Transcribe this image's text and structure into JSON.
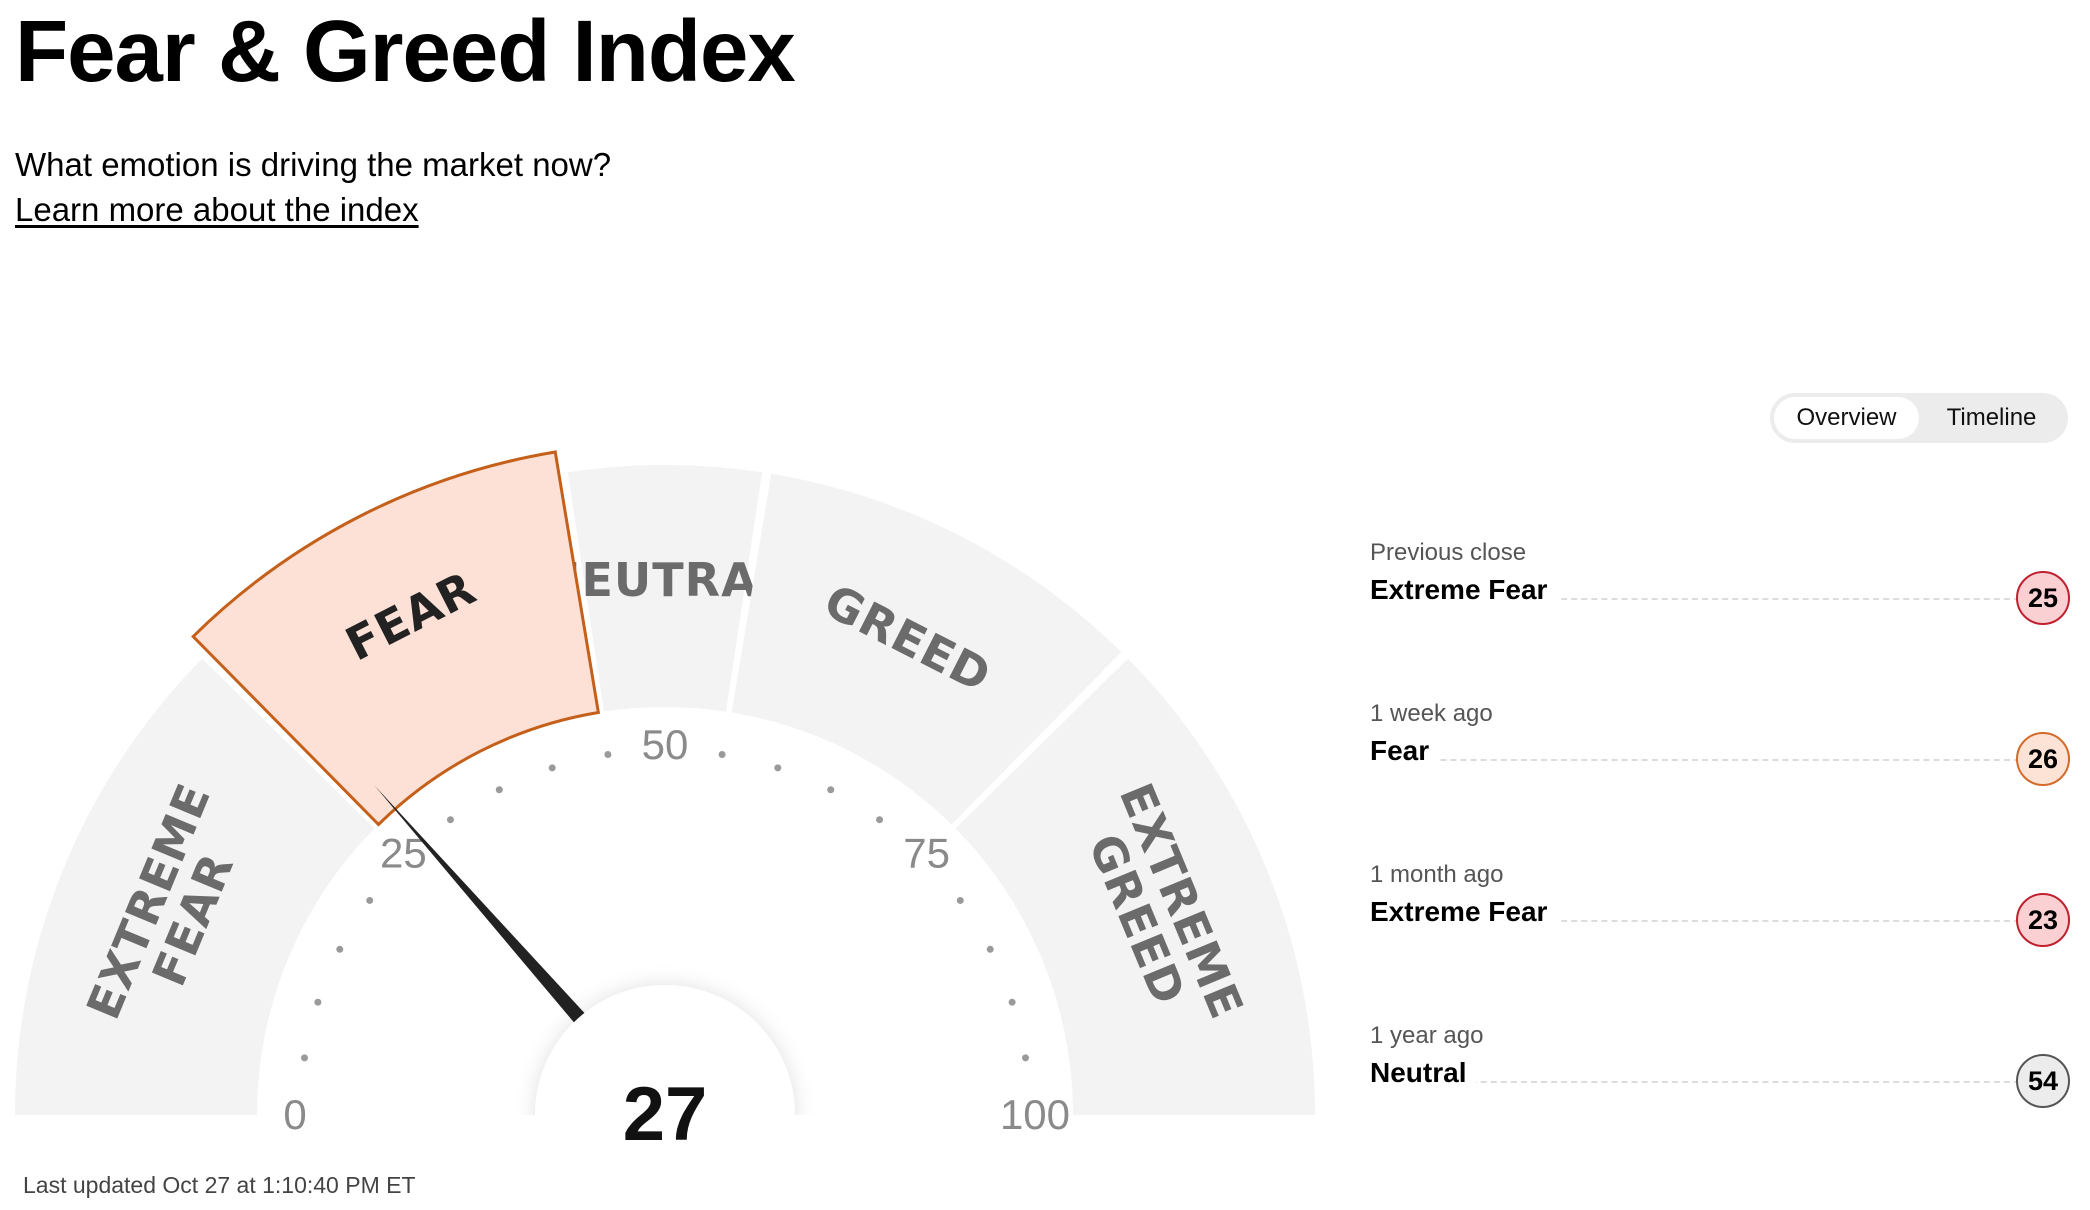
{
  "header": {
    "title": "Fear & Greed Index",
    "subtitle": "What emotion is driving the market now?",
    "learn_more": "Learn more about the index"
  },
  "gauge": {
    "value": 27,
    "value_label": "27",
    "current_zone": "Fear",
    "segments": [
      {
        "name": "extreme-fear",
        "lines": [
          "EXTREME",
          "FEAR"
        ],
        "from": 0,
        "to": 25
      },
      {
        "name": "fear",
        "lines": [
          "FEAR"
        ],
        "from": 25,
        "to": 45
      },
      {
        "name": "neutral",
        "lines": [
          "NEUTRAL"
        ],
        "from": 45,
        "to": 55
      },
      {
        "name": "greed",
        "lines": [
          "GREED"
        ],
        "from": 55,
        "to": 75
      },
      {
        "name": "extreme-greed",
        "lines": [
          "EXTREME",
          "GREED"
        ],
        "from": 75,
        "to": 100
      }
    ],
    "ticks": [
      {
        "value": 0,
        "label": "0"
      },
      {
        "value": 25,
        "label": "25"
      },
      {
        "value": 50,
        "label": "50"
      },
      {
        "value": 75,
        "label": "75"
      },
      {
        "value": 100,
        "label": "100"
      }
    ],
    "colors": {
      "segment": "#f3f3f3",
      "active_fill": "#fde0d6",
      "active_stroke": "#c5601a",
      "needle": "#222222",
      "label": "#6b6b6b",
      "active_label": "#222222"
    }
  },
  "last_updated": "Last updated Oct 27 at 1:10:40 PM ET",
  "tabs": {
    "overview": "Overview",
    "timeline": "Timeline",
    "active": "overview"
  },
  "history": [
    {
      "label": "Previous close",
      "status": "Extreme Fear",
      "value": "25",
      "bg": "#fbd0d2",
      "border": "#c0202f"
    },
    {
      "label": "1 week ago",
      "status": "Fear",
      "value": "26",
      "bg": "#fde3d6",
      "border": "#d46a2a"
    },
    {
      "label": "1 month ago",
      "status": "Extreme Fear",
      "value": "23",
      "bg": "#fbd0d2",
      "border": "#c0202f"
    },
    {
      "label": "1 year ago",
      "status": "Neutral",
      "value": "54",
      "bg": "#ececec",
      "border": "#555555"
    }
  ]
}
